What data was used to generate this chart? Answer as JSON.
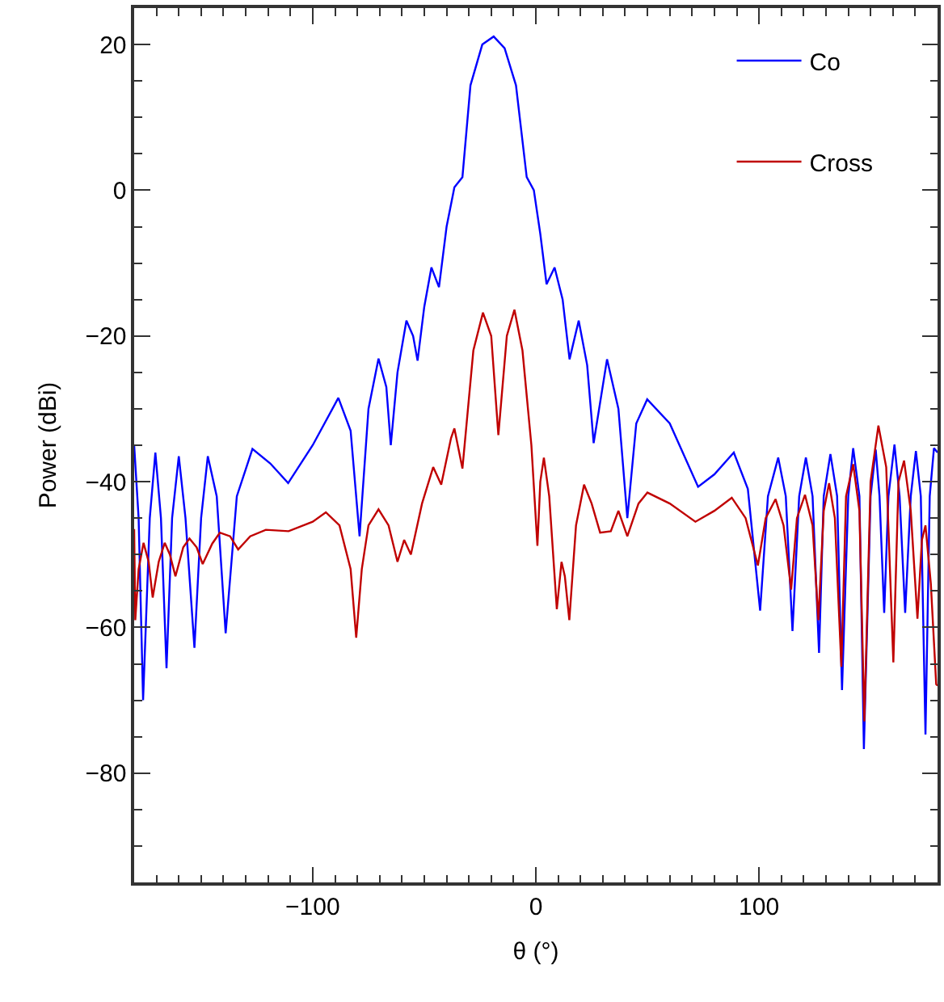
{
  "chart_data": {
    "type": "line",
    "xlabel": "θ (°)",
    "ylabel": "Power (dBi)",
    "xlim": [
      -180,
      180
    ],
    "ylim": [
      -95,
      25
    ],
    "xticks": [
      -100,
      0,
      100
    ],
    "yticks": [
      -80,
      -60,
      -40,
      -20,
      0,
      20
    ],
    "grid": false,
    "legend": "top right",
    "marker": "none",
    "line_style": "solid",
    "series": [
      {
        "name": "Co",
        "color": "#0000ff",
        "x": [
          -180,
          -178,
          -176,
          -173,
          -170.5,
          -168,
          -165.5,
          -163,
          -160,
          -157,
          -153,
          -150,
          -147,
          -143,
          -139,
          -134,
          -127,
          -119,
          -111,
          -100,
          -88.5,
          -83,
          -79,
          -75,
          -70.5,
          -67,
          -65,
          -62,
          -58,
          -55,
          -53,
          -50,
          -46.8,
          -43.4,
          -40,
          -36.5,
          -32.9,
          -29.3,
          -24,
          -18.9,
          -14,
          -8.9,
          -4.1,
          -0.9,
          2,
          4.8,
          8.4,
          12,
          15.1,
          19.2,
          23,
          25.9,
          31.9,
          37,
          41,
          45,
          49.9,
          60,
          72.7,
          80,
          88.7,
          95,
          100.5,
          104,
          108.6,
          112,
          115,
          118,
          121,
          124,
          126.9,
          129,
          132,
          135,
          137.2,
          140,
          142.2,
          145,
          147,
          150,
          152.3,
          154,
          156.1,
          158,
          160.7,
          163,
          165.5,
          168,
          170.3,
          172.5,
          174.6,
          176.5,
          178.4,
          180
        ],
        "values": [
          -35,
          -45,
          -70,
          -45,
          -36,
          -45,
          -65.6,
          -45,
          -36.5,
          -45,
          -62.8,
          -45,
          -36.5,
          -42,
          -60.8,
          -42,
          -35.5,
          -37.5,
          -40.2,
          -35,
          -28.5,
          -33,
          -47.5,
          -30,
          -23.1,
          -27,
          -35,
          -25,
          -17.9,
          -20,
          -23.4,
          -16,
          -10.6,
          -13.3,
          -5,
          0.4,
          1.8,
          14.4,
          20,
          21.1,
          19.5,
          14.4,
          1.8,
          0,
          -6,
          -12.9,
          -10.6,
          -15,
          -23.2,
          -17.9,
          -24,
          -34.7,
          -23.2,
          -30,
          -45,
          -32,
          -28.7,
          -32,
          -40.7,
          -39,
          -36,
          -41,
          -57.7,
          -42,
          -36.7,
          -42,
          -60.5,
          -42,
          -36.7,
          -42,
          -63.5,
          -42,
          -36.2,
          -42,
          -68.6,
          -42,
          -35.4,
          -42,
          -76.7,
          -42,
          -35.6,
          -42,
          -58,
          -42,
          -34.9,
          -42,
          -58,
          -42,
          -35.8,
          -42,
          -74.7,
          -42,
          -35.4,
          -36
        ]
      },
      {
        "name": "Cross",
        "color": "#c00000",
        "x": [
          -180,
          -179.5,
          -178,
          -175.8,
          -173.5,
          -171.7,
          -169,
          -166.3,
          -164,
          -161.5,
          -158,
          -155.2,
          -152,
          -149.3,
          -145,
          -141.6,
          -137,
          -133.4,
          -128,
          -121,
          -110.8,
          -100,
          -94.1,
          -88,
          -83,
          -80.5,
          -78,
          -75,
          -70.5,
          -66,
          -62,
          -59,
          -56,
          -51,
          -46,
          -42.4,
          -38,
          -36.5,
          -32.9,
          -28,
          -23.7,
          -20,
          -16.8,
          -13,
          -9.6,
          -6,
          -2,
          0.7,
          2,
          3.6,
          6,
          9.4,
          11.5,
          13,
          15,
          18,
          21.6,
          25,
          28.8,
          33.6,
          37,
          41,
          46,
          50,
          60,
          71.5,
          80,
          87.8,
          94,
          99.5,
          103,
          107.4,
          111,
          114.4,
          117,
          120.6,
          124,
          126.6,
          129,
          131.4,
          134,
          136.9,
          139,
          142.2,
          145,
          147.2,
          150,
          153.5,
          157,
          160.2,
          162.5,
          165,
          168,
          171,
          173,
          174.6,
          177,
          179.4,
          180
        ],
        "values": [
          -46.5,
          -59,
          -52,
          -48.4,
          -51,
          -55.9,
          -51,
          -48.4,
          -50,
          -53,
          -49,
          -47.8,
          -49,
          -51.3,
          -48.5,
          -47,
          -47.5,
          -49.3,
          -47.5,
          -46.6,
          -46.8,
          -45.5,
          -44.2,
          -46,
          -52,
          -61.4,
          -52,
          -46,
          -43.8,
          -46,
          -51,
          -48,
          -50,
          -43,
          -38,
          -40.4,
          -34,
          -32.7,
          -38.2,
          -22,
          -16.8,
          -20,
          -33.6,
          -20,
          -16.4,
          -22,
          -35,
          -48.8,
          -40,
          -36.7,
          -42,
          -57.5,
          -51,
          -53,
          -59,
          -46,
          -40.4,
          -43,
          -47,
          -46.8,
          -44,
          -47.5,
          -43,
          -41.5,
          -43,
          -45.5,
          -44,
          -42.2,
          -45,
          -51.5,
          -45,
          -42.4,
          -46,
          -54.8,
          -45,
          -41.8,
          -46,
          -59,
          -44,
          -40.2,
          -45,
          -65.4,
          -42,
          -37.6,
          -44,
          -72.9,
          -40,
          -32.3,
          -38,
          -64.8,
          -40,
          -37.1,
          -44,
          -58.8,
          -48,
          -46,
          -54,
          -67.8,
          -68
        ]
      }
    ]
  }
}
